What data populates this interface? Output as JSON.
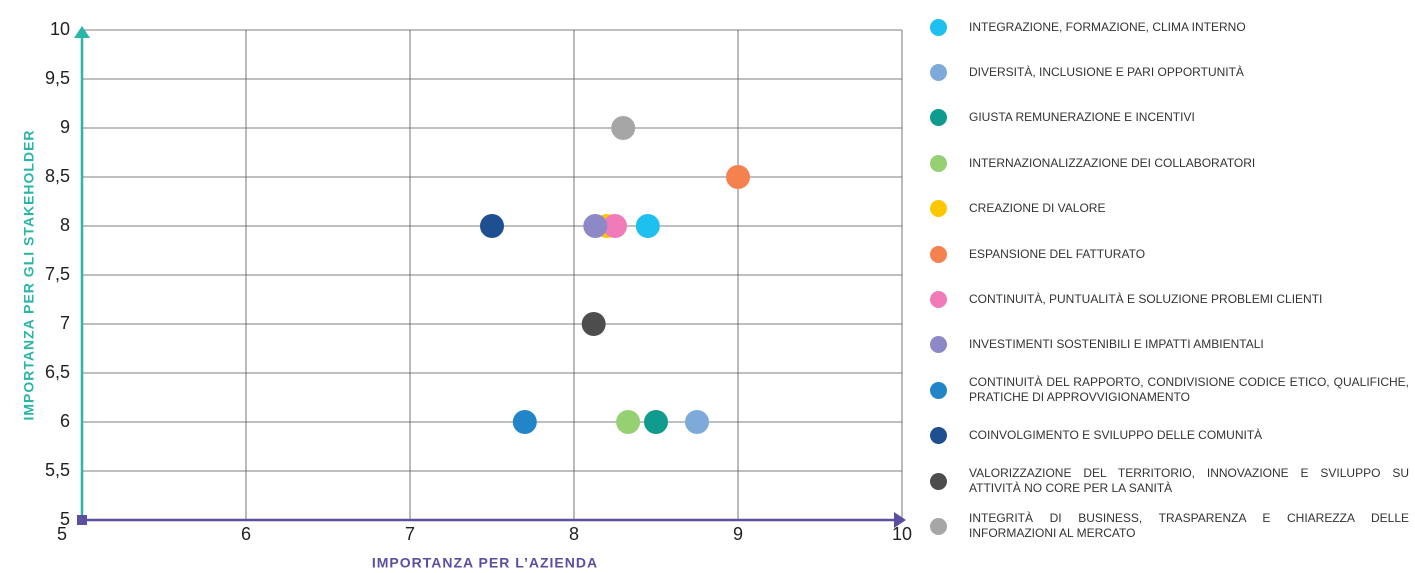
{
  "chart_data": {
    "type": "scatter",
    "x_label": "IMPORTANZA PER L’AZIENDA",
    "y_label": "IMPORTANZA PER GLI STAKEHOLDER",
    "xlim": [
      5,
      10
    ],
    "ylim": [
      5,
      10
    ],
    "xticks": [
      5,
      6,
      7,
      8,
      9,
      10
    ],
    "yticks": [
      5,
      {
        "value": 5.5,
        "label": "5,5"
      },
      6,
      {
        "value": 6.5,
        "label": "6,5"
      },
      7,
      {
        "value": 7.5,
        "label": "7,5"
      },
      8,
      {
        "value": 8.5,
        "label": "8,5"
      },
      9,
      {
        "value": 9.5,
        "label": "9,5"
      },
      10
    ],
    "grid": true,
    "series": [
      {
        "name": "INTEGRAZIONE, FORMAZIONE, CLIMA INTERNO",
        "color": "#1ec0ef",
        "x": [
          8.45
        ],
        "values": [
          8
        ]
      },
      {
        "name": "DIVERSITÀ, INCLUSIONE E PARI OPPORTUNITÀ",
        "color": "#7eaad9",
        "x": [
          8.75
        ],
        "values": [
          6
        ]
      },
      {
        "name": "GIUSTA REMUNERAZIONE E INCENTIVI",
        "color": "#0f9b8e",
        "x": [
          8.5
        ],
        "values": [
          6
        ]
      },
      {
        "name": "INTERNAZIONALIZZAZIONE DEI COLLABORATORI",
        "color": "#95d073",
        "x": [
          8.33
        ],
        "values": [
          6
        ]
      },
      {
        "name": "CREAZIONE DI VALORE",
        "color": "#fdc800",
        "x": [
          8.2
        ],
        "values": [
          8
        ]
      },
      {
        "name": "ESPANSIONE DEL FATTURATO",
        "color": "#f5814f",
        "x": [
          9.0
        ],
        "values": [
          8.5
        ]
      },
      {
        "name": "CONTINUITÀ, PUNTUALITÀ E SOLUZIONE PROBLEMI CLIENTI",
        "color": "#f17ab8",
        "x": [
          8.25
        ],
        "values": [
          8
        ]
      },
      {
        "name": "INVESTIMENTI SOSTENIBILI E IMPATTI AMBIENTALI",
        "color": "#8d88c6",
        "x": [
          8.13
        ],
        "values": [
          8
        ]
      },
      {
        "name": "CONTINUITÀ DEL RAPPORTO, CONDIVISIONE CODICE ETICO, QUALIFICHE, PRATICHE DI APPROVVIGIONAMENTO",
        "color": "#2185c8",
        "x": [
          7.7
        ],
        "values": [
          6
        ]
      },
      {
        "name": "COINVOLGIMENTO E SVILUPPO DELLE COMUNITÀ",
        "color": "#1d4f91",
        "x": [
          7.5
        ],
        "values": [
          8
        ]
      },
      {
        "name": "VALORIZZAZIONE DEL TERRITORIO, INNOVAZIONE E SVILUPPO SU ATTIVITÀ NO CORE PER LA SANITÀ",
        "color": "#4d4d4d",
        "x": [
          8.12
        ],
        "values": [
          7
        ]
      },
      {
        "name": "INTEGRITÀ DI BUSINESS, TRASPARENZA E CHIAREZZA DELLE INFORMAZIONI AL MERCATO",
        "color": "#a6a6a6",
        "x": [
          8.3
        ],
        "values": [
          9
        ]
      }
    ]
  }
}
